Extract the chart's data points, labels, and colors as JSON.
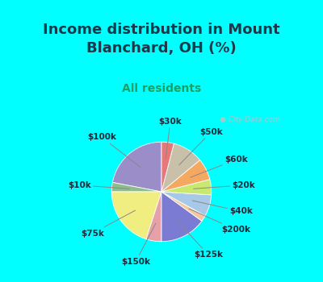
{
  "title": "Income distribution in Mount\nBlanchard, OH (%)",
  "subtitle": "All residents",
  "labels": [
    "$100k",
    "$10k",
    "$75k",
    "$150k",
    "$125k",
    "$200k",
    "$40k",
    "$20k",
    "$60k",
    "$50k",
    "$30k"
  ],
  "values": [
    22,
    3,
    20,
    5,
    15,
    2,
    7,
    5,
    7,
    10,
    4
  ],
  "colors": [
    "#9b8dc8",
    "#8fbc8f",
    "#f0ee80",
    "#e8a0a8",
    "#7b7bd4",
    "#f5c8a0",
    "#a8c8e8",
    "#c8e870",
    "#f5a860",
    "#c8c0a8",
    "#e87878"
  ],
  "background_top": "#00ffff",
  "chart_bg_color": "#d4f0d4",
  "title_color": "#1a3a4a",
  "subtitle_color": "#20a060",
  "watermark": "City-Data.com",
  "title_fontsize": 13,
  "subtitle_fontsize": 10
}
